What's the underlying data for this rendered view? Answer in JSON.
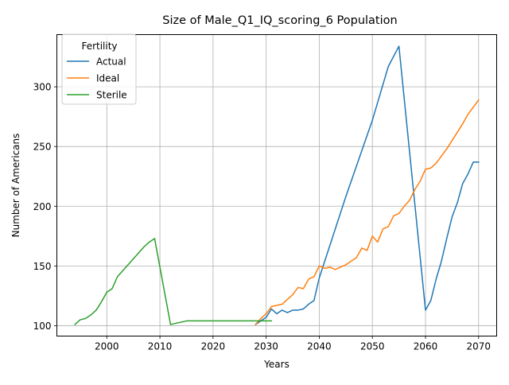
{
  "chart_data": {
    "type": "line",
    "title": "Size of Male_Q1_IQ_scoring_6 Population",
    "xlabel": "Years",
    "ylabel": "Number of Americans",
    "xlim": [
      1990.6,
      2073.4
    ],
    "ylim": [
      91.3,
      343.7
    ],
    "x_ticks": [
      2000,
      2010,
      2020,
      2030,
      2040,
      2050,
      2060,
      2070
    ],
    "y_ticks": [
      100,
      150,
      200,
      250,
      300
    ],
    "grid": true,
    "legend": {
      "title": "Fertility",
      "placement": "top-left"
    },
    "series": [
      {
        "name": "Actual",
        "color": "#1f77b4",
        "points": [
          [
            2028,
            101
          ],
          [
            2029,
            104
          ],
          [
            2030,
            107
          ],
          [
            2031,
            114
          ],
          [
            2032,
            110
          ],
          [
            2033,
            113
          ],
          [
            2034,
            111
          ],
          [
            2035,
            113
          ],
          [
            2036,
            113
          ],
          [
            2037,
            114
          ],
          [
            2038,
            118
          ],
          [
            2039,
            121
          ],
          [
            2040,
            140
          ],
          [
            2045,
            208
          ],
          [
            2050,
            272
          ],
          [
            2053,
            317
          ],
          [
            2055,
            334
          ],
          [
            2060,
            113
          ],
          [
            2061,
            121
          ],
          [
            2062,
            139
          ],
          [
            2063,
            154
          ],
          [
            2064,
            173
          ],
          [
            2065,
            191
          ],
          [
            2066,
            203
          ],
          [
            2067,
            219
          ],
          [
            2068,
            227
          ],
          [
            2069,
            237
          ],
          [
            2070,
            237
          ]
        ]
      },
      {
        "name": "Ideal",
        "color": "#ff7f0e",
        "points": [
          [
            2028,
            101
          ],
          [
            2029,
            106
          ],
          [
            2030,
            110
          ],
          [
            2031,
            116
          ],
          [
            2032,
            117
          ],
          [
            2033,
            118
          ],
          [
            2034,
            122
          ],
          [
            2035,
            126
          ],
          [
            2036,
            132
          ],
          [
            2037,
            131
          ],
          [
            2038,
            139
          ],
          [
            2039,
            141
          ],
          [
            2040,
            150
          ],
          [
            2041,
            148
          ],
          [
            2042,
            149
          ],
          [
            2043,
            147
          ],
          [
            2044,
            149
          ],
          [
            2045,
            151
          ],
          [
            2046,
            154
          ],
          [
            2047,
            157
          ],
          [
            2048,
            165
          ],
          [
            2049,
            163
          ],
          [
            2050,
            175
          ],
          [
            2051,
            170
          ],
          [
            2052,
            181
          ],
          [
            2053,
            183
          ],
          [
            2054,
            192
          ],
          [
            2055,
            194
          ],
          [
            2056,
            200
          ],
          [
            2057,
            205
          ],
          [
            2058,
            214
          ],
          [
            2059,
            221
          ],
          [
            2060,
            231
          ],
          [
            2061,
            232
          ],
          [
            2062,
            236
          ],
          [
            2063,
            242
          ],
          [
            2064,
            248
          ],
          [
            2065,
            255
          ],
          [
            2066,
            262
          ],
          [
            2067,
            269
          ],
          [
            2068,
            277
          ],
          [
            2069,
            283
          ],
          [
            2070,
            289
          ]
        ]
      },
      {
        "name": "Sterile",
        "color": "#2ca02c",
        "points": [
          [
            1994,
            101
          ],
          [
            1995,
            105
          ],
          [
            1996,
            106
          ],
          [
            1997,
            109
          ],
          [
            1998,
            113
          ],
          [
            1999,
            120
          ],
          [
            2000,
            128
          ],
          [
            2001,
            131
          ],
          [
            2002,
            141
          ],
          [
            2003,
            146
          ],
          [
            2004,
            151
          ],
          [
            2005,
            156
          ],
          [
            2006,
            161
          ],
          [
            2007,
            166
          ],
          [
            2008,
            170
          ],
          [
            2009,
            173
          ],
          [
            2012,
            101
          ],
          [
            2015,
            104
          ],
          [
            2020,
            104
          ],
          [
            2025,
            104
          ],
          [
            2031,
            104
          ]
        ]
      }
    ]
  }
}
